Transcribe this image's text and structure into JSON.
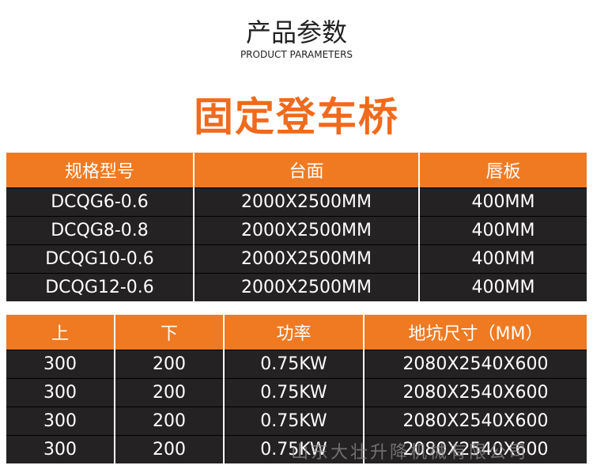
{
  "header": {
    "title": "产品参数",
    "subtitle": "PRODUCT PARAMETERS"
  },
  "product_title": "固定登车桥",
  "table1": {
    "columns": [
      "规格型号",
      "台面",
      "唇板"
    ],
    "rows": [
      [
        "DCQG6-0.6",
        "2000X2500MM",
        "400MM"
      ],
      [
        "DCQG8-0.8",
        "2000X2500MM",
        "400MM"
      ],
      [
        "DCQG10-0.6",
        "2000X2500MM",
        "400MM"
      ],
      [
        "DCQG12-0.6",
        "2000X2500MM",
        "400MM"
      ]
    ]
  },
  "table2": {
    "columns": [
      "上",
      "下",
      "功率",
      "地坑尺寸（MM）"
    ],
    "rows": [
      [
        "300",
        "200",
        "0.75KW",
        "2080X2540X600"
      ],
      [
        "300",
        "200",
        "0.75KW",
        "2080X2540X600"
      ],
      [
        "300",
        "200",
        "0.75KW",
        "2080X2540X600"
      ],
      [
        "300",
        "200",
        "0.75KW",
        "2080X2540X600"
      ]
    ]
  },
  "watermark": "山东大壮升降机械有限公司"
}
